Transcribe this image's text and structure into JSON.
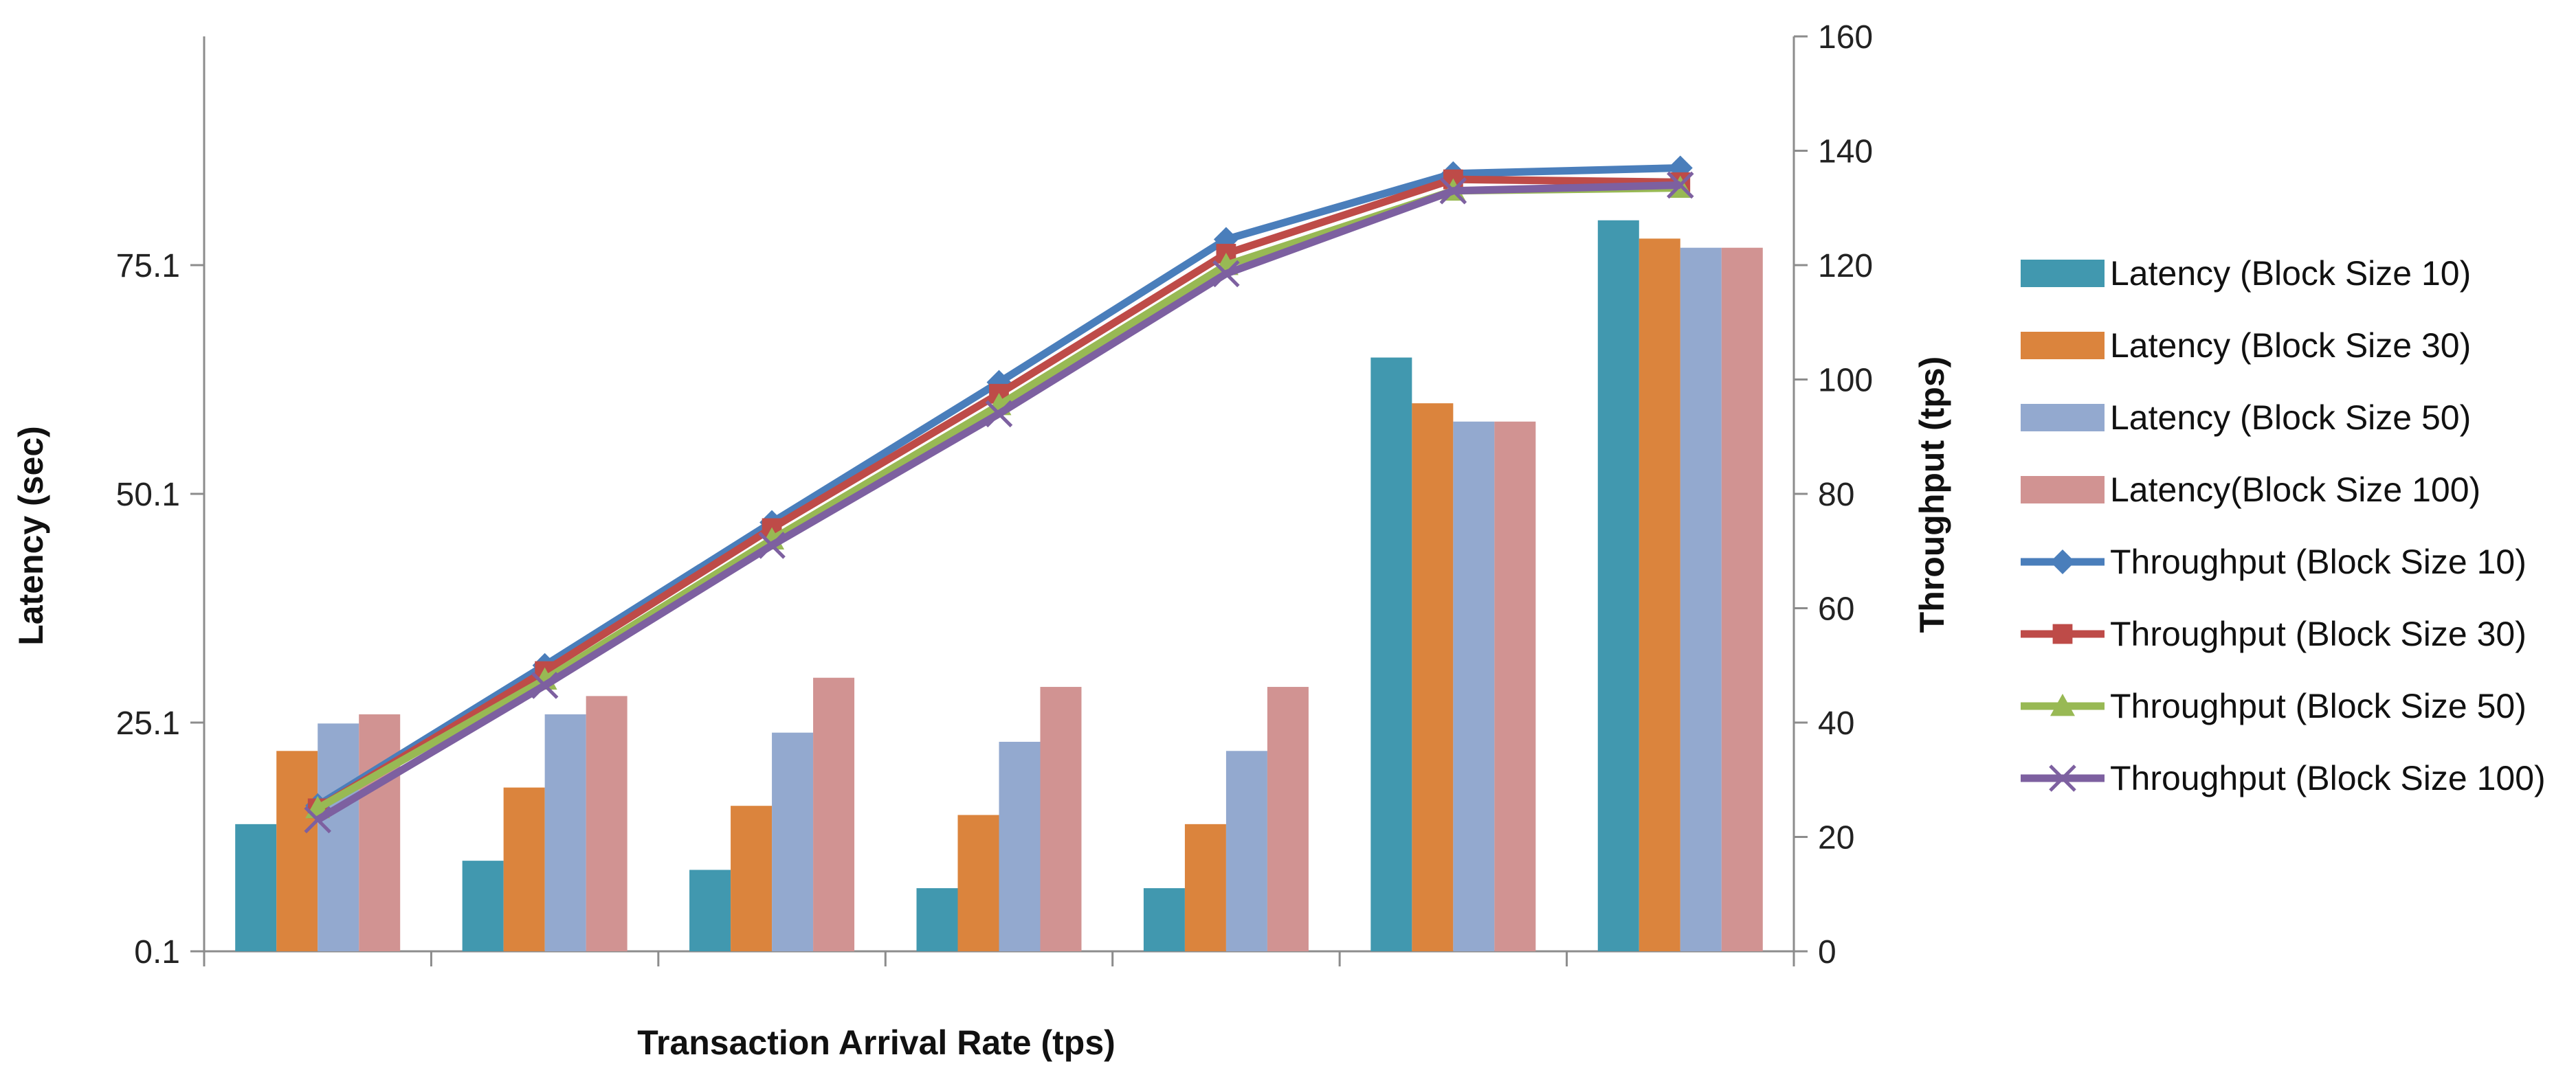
{
  "chart_data": {
    "type": "bar",
    "title": "",
    "xlabel": "Transaction Arrival Rate (tps)",
    "ylabel": "Latency (sec)",
    "y2label": "Throughput (tps)",
    "categories": [
      "",
      "",
      "",
      "",
      "",
      "",
      ""
    ],
    "ylim": [
      0.1,
      100.1
    ],
    "yticks": [
      "0.1",
      "25.1",
      "50.1",
      "75.1"
    ],
    "y2lim": [
      0,
      160
    ],
    "y2ticks": [
      "0",
      "20",
      "40",
      "60",
      "80",
      "100",
      "120",
      "140",
      "160"
    ],
    "bar_series": [
      {
        "name": "Latency (Block Size 10)",
        "color": "#4198AF",
        "values": [
          14,
          10,
          9,
          7,
          7,
          65,
          80
        ]
      },
      {
        "name": "Latency (Block Size 30)",
        "color": "#DB843D",
        "values": [
          22,
          18,
          16,
          15,
          14,
          60,
          78
        ]
      },
      {
        "name": "Latency (Block Size 50)",
        "color": "#93A9CF",
        "values": [
          25,
          26,
          24,
          23,
          22,
          58,
          77
        ]
      },
      {
        "name": "Latency(Block Size 100)",
        "color": "#D19392",
        "values": [
          26,
          28,
          30,
          29,
          29,
          58,
          77
        ]
      }
    ],
    "line_series": [
      {
        "name": "Throughput (Block Size 10)",
        "color": "#4A7EBB",
        "marker": "diamond",
        "values": [
          25.5,
          50,
          75,
          99.5,
          124.5,
          136,
          137
        ]
      },
      {
        "name": "Throughput (Block Size 30)",
        "color": "#BE4B48",
        "marker": "square",
        "values": [
          25,
          49,
          74,
          97.5,
          122,
          135,
          134.5
        ]
      },
      {
        "name": "Throughput (Block Size 50)",
        "color": "#98B954",
        "marker": "triangle",
        "values": [
          25,
          47.5,
          72,
          95.5,
          120,
          133,
          133.5
        ]
      },
      {
        "name": "Throughput (Block Size 100)",
        "color": "#7D60A0",
        "marker": "x",
        "values": [
          23,
          46.5,
          71,
          94,
          118.5,
          133,
          134
        ]
      }
    ]
  }
}
